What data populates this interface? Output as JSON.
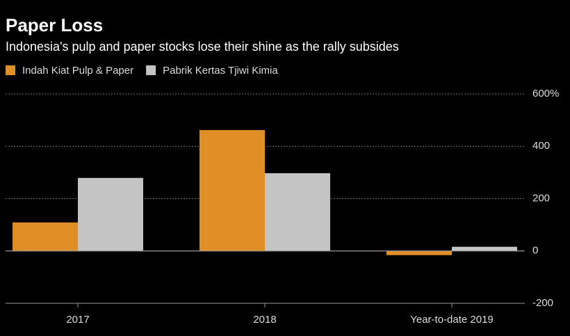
{
  "chart_data": {
    "type": "bar",
    "title": "Paper Loss",
    "subtitle": "Indonesia's pulp and paper stocks lose their shine as the rally subsides",
    "categories": [
      "2017",
      "2018",
      "Year-to-date 2019"
    ],
    "series": [
      {
        "name": "Indah Kiat Pulp & Paper",
        "color": "#e08e26",
        "values": [
          109,
          462,
          -16
        ]
      },
      {
        "name": "Pabrik Kertas Tjiwi Kimia",
        "color": "#c4c4c4",
        "values": [
          279,
          297,
          16
        ]
      }
    ],
    "ylim": [
      -200,
      600
    ],
    "yticks": [
      {
        "value": 600,
        "label": "600%"
      },
      400,
      200,
      0,
      -200
    ],
    "grid": true
  }
}
